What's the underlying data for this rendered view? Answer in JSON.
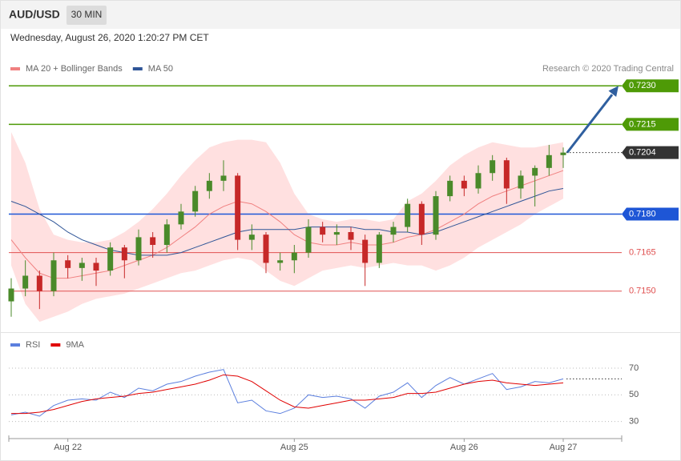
{
  "header": {
    "symbol": "AUD/USD",
    "timeframe": "30 MIN",
    "date": "Wednesday, August 26, 2020 1:20:27 PM CET",
    "credit": "Research © 2020 Trading Central"
  },
  "chart_data": [
    {
      "type": "candlestick",
      "categories": [
        null,
        null,
        null,
        null,
        "Aug 22",
        null,
        null,
        null,
        null,
        null,
        null,
        null,
        null,
        null,
        null,
        null,
        null,
        null,
        null,
        null,
        "Aug 25",
        null,
        null,
        null,
        null,
        null,
        null,
        null,
        null,
        null,
        null,
        null,
        "Aug 26",
        null,
        null,
        null,
        null,
        null,
        null,
        "Aug 27"
      ],
      "candles": [
        [
          0.7146,
          0.7155,
          0.714,
          0.7151
        ],
        [
          0.7151,
          0.7162,
          0.7148,
          0.7156
        ],
        [
          0.7156,
          0.7158,
          0.7143,
          0.715
        ],
        [
          0.715,
          0.7165,
          0.7148,
          0.7162
        ],
        [
          0.7162,
          0.7164,
          0.7155,
          0.7159
        ],
        [
          0.7159,
          0.7163,
          0.7154,
          0.7161
        ],
        [
          0.7161,
          0.7163,
          0.7152,
          0.7158
        ],
        [
          0.7158,
          0.7169,
          0.7156,
          0.7167
        ],
        [
          0.7167,
          0.7168,
          0.7155,
          0.7162
        ],
        [
          0.7162,
          0.7174,
          0.716,
          0.7171
        ],
        [
          0.7171,
          0.7173,
          0.7163,
          0.7168
        ],
        [
          0.7168,
          0.7178,
          0.7165,
          0.7176
        ],
        [
          0.7176,
          0.7184,
          0.7174,
          0.7181
        ],
        [
          0.7181,
          0.7191,
          0.7179,
          0.7189
        ],
        [
          0.7189,
          0.7196,
          0.7186,
          0.7193
        ],
        [
          0.7193,
          0.7201,
          0.7189,
          0.7195
        ],
        [
          0.7195,
          0.7196,
          0.7166,
          0.717
        ],
        [
          0.717,
          0.7176,
          0.7166,
          0.7172
        ],
        [
          0.7172,
          0.7173,
          0.7157,
          0.7161
        ],
        [
          0.7161,
          0.7165,
          0.7158,
          0.7162
        ],
        [
          0.7162,
          0.7168,
          0.7157,
          0.7165
        ],
        [
          0.7165,
          0.7178,
          0.7163,
          0.7175
        ],
        [
          0.7175,
          0.7177,
          0.7169,
          0.7172
        ],
        [
          0.7172,
          0.7176,
          0.7168,
          0.7173
        ],
        [
          0.7173,
          0.7175,
          0.7166,
          0.717
        ],
        [
          0.717,
          0.7172,
          0.7152,
          0.7161
        ],
        [
          0.7161,
          0.7173,
          0.7159,
          0.7172
        ],
        [
          0.7172,
          0.7177,
          0.7169,
          0.7175
        ],
        [
          0.7175,
          0.7186,
          0.7173,
          0.7184
        ],
        [
          0.7184,
          0.7185,
          0.7168,
          0.7172
        ],
        [
          0.7172,
          0.7189,
          0.717,
          0.7187
        ],
        [
          0.7187,
          0.7195,
          0.7185,
          0.7193
        ],
        [
          0.7193,
          0.7195,
          0.7187,
          0.719
        ],
        [
          0.719,
          0.7199,
          0.7188,
          0.7196
        ],
        [
          0.7196,
          0.7203,
          0.7193,
          0.7201
        ],
        [
          0.7201,
          0.7202,
          0.7184,
          0.719
        ],
        [
          0.719,
          0.7197,
          0.7186,
          0.7195
        ],
        [
          0.7195,
          0.7199,
          0.7183,
          0.7198
        ],
        [
          0.7198,
          0.7207,
          0.7195,
          0.7203
        ],
        [
          0.7203,
          0.7206,
          0.7198,
          0.7204
        ]
      ],
      "up_color": "#4a8a2a",
      "down_color": "#c62828",
      "series": [
        {
          "name": "MA 20 + Bollinger Bands",
          "color": "#f08080",
          "band_color": "#ffe0e0",
          "values": [
            0.717,
            0.7163,
            0.7157,
            0.7155,
            0.7155,
            0.7156,
            0.7157,
            0.7158,
            0.716,
            0.7162,
            0.7164,
            0.7167,
            0.7171,
            0.7175,
            0.718,
            0.7183,
            0.7185,
            0.7184,
            0.7181,
            0.7177,
            0.7172,
            0.7169,
            0.7168,
            0.7168,
            0.7169,
            0.7168,
            0.7168,
            0.7169,
            0.7171,
            0.7172,
            0.7174,
            0.7177,
            0.718,
            0.7184,
            0.7187,
            0.7189,
            0.7191,
            0.7193,
            0.7195,
            0.7197
          ],
          "upper": [
            0.7212,
            0.72,
            0.7182,
            0.7172,
            0.717,
            0.7169,
            0.7169,
            0.717,
            0.7173,
            0.7177,
            0.7182,
            0.7188,
            0.7195,
            0.7201,
            0.7206,
            0.7208,
            0.7209,
            0.7209,
            0.7208,
            0.72,
            0.7188,
            0.718,
            0.7178,
            0.7177,
            0.7178,
            0.7178,
            0.7177,
            0.7178,
            0.7185,
            0.7188,
            0.7193,
            0.7199,
            0.7203,
            0.7206,
            0.7208,
            0.7207,
            0.7206,
            0.7206,
            0.7207,
            0.7208
          ],
          "lower": [
            0.716,
            0.7145,
            0.7138,
            0.714,
            0.7142,
            0.7145,
            0.7147,
            0.7148,
            0.7149,
            0.7151,
            0.7153,
            0.7155,
            0.7157,
            0.7158,
            0.716,
            0.7162,
            0.7163,
            0.7162,
            0.7158,
            0.7154,
            0.7152,
            0.7155,
            0.7158,
            0.7159,
            0.716,
            0.7159,
            0.716,
            0.7161,
            0.716,
            0.716,
            0.7158,
            0.716,
            0.7163,
            0.7167,
            0.717,
            0.7173,
            0.7176,
            0.718,
            0.7183,
            0.7186
          ]
        },
        {
          "name": "MA 50",
          "color": "#2f5597",
          "values": [
            0.7185,
            0.7183,
            0.718,
            0.7177,
            0.7173,
            0.717,
            0.7168,
            0.7166,
            0.7165,
            0.7164,
            0.7164,
            0.7164,
            0.7165,
            0.7167,
            0.7169,
            0.7171,
            0.7173,
            0.7174,
            0.7174,
            0.7174,
            0.7174,
            0.7175,
            0.7175,
            0.7175,
            0.7175,
            0.7174,
            0.7174,
            0.7173,
            0.7173,
            0.7172,
            0.7173,
            0.7175,
            0.7177,
            0.7179,
            0.7181,
            0.7183,
            0.7185,
            0.7187,
            0.7189,
            0.719
          ]
        }
      ],
      "levels": [
        {
          "value": 0.723,
          "label": "0.7230",
          "color": "#4e9a06",
          "boxed": true
        },
        {
          "value": 0.7215,
          "color": "#4e9a06",
          "boxed": true
        },
        {
          "value": 0.7204,
          "color": "#333333",
          "boxed": true,
          "dotted": true
        },
        {
          "value": 0.718,
          "label": "0.7180",
          "color": "#1e56d6",
          "boxed": true
        },
        {
          "value": 0.7165,
          "color": "#e05050",
          "boxed": false
        },
        {
          "value": 0.715,
          "label": "0.7150",
          "color": "#e05050",
          "boxed": false
        }
      ],
      "arrow_color": "#2f5f9f",
      "ylim": [
        0.7134,
        0.7241
      ]
    },
    {
      "type": "line",
      "series": [
        {
          "name": "RSI",
          "color": "#5b7fde",
          "values": [
            35,
            37,
            34,
            42,
            46,
            47,
            46,
            52,
            48,
            55,
            53,
            58,
            60,
            64,
            67,
            69,
            44,
            46,
            38,
            36,
            40,
            50,
            48,
            49,
            47,
            40,
            49,
            52,
            59,
            48,
            57,
            63,
            58,
            62,
            66,
            54,
            56,
            60,
            59,
            62
          ]
        },
        {
          "name": "9MA",
          "color": "#e00000",
          "values": [
            36,
            36,
            37,
            39,
            42,
            45,
            47,
            48,
            49,
            51,
            52,
            54,
            56,
            58,
            61,
            65,
            64,
            60,
            53,
            46,
            41,
            40,
            42,
            44,
            46,
            46,
            47,
            48,
            51,
            51,
            52,
            55,
            58,
            60,
            61,
            59,
            58,
            57,
            58,
            59
          ]
        }
      ],
      "ylim": [
        19,
        94
      ],
      "yticks": [
        30,
        50,
        70
      ],
      "grid": true
    }
  ]
}
